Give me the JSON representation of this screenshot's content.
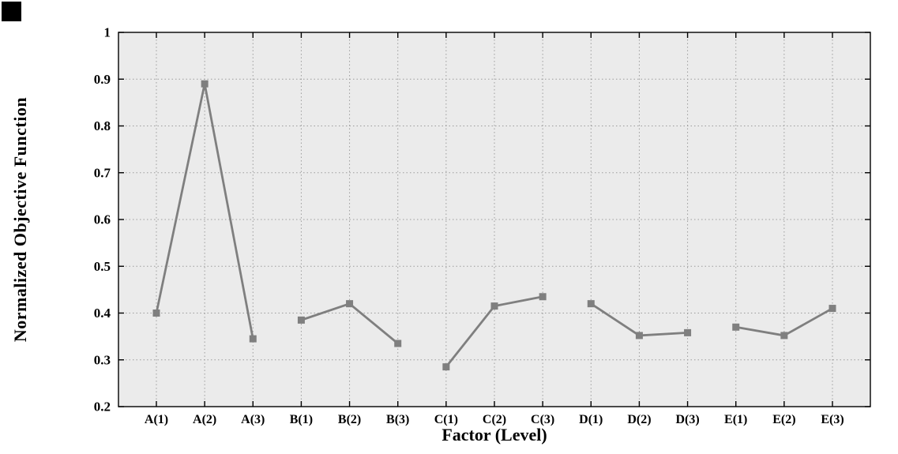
{
  "figure": {
    "background": "#ffffff",
    "plot_background": "#ebebeb",
    "axis_color": "#000000",
    "grid_color": "#9c9c9c",
    "corner_mark_color": "#000000"
  },
  "chart_data": {
    "type": "line",
    "title": "",
    "xlabel": "Factor (Level)",
    "ylabel": "Normalized Objective Function",
    "categories": [
      "A(1)",
      "A(2)",
      "A(3)",
      "B(1)",
      "B(2)",
      "B(3)",
      "C(1)",
      "C(2)",
      "C(3)",
      "D(1)",
      "D(2)",
      "D(3)",
      "E(1)",
      "E(2)",
      "E(3)"
    ],
    "ylim": [
      0.2,
      1
    ],
    "ytick_labels": [
      "0.2",
      "0.3",
      "0.4",
      "0.5",
      "0.6",
      "0.7",
      "0.8",
      "0.9",
      "1"
    ],
    "grid": "dotted",
    "legend": "none",
    "line_color": "#7f7f7f",
    "marker": "square",
    "marker_color": "#7f7f7f",
    "series": [
      {
        "name": "A",
        "start_index": 0,
        "values": [
          0.4,
          0.89,
          0.345
        ]
      },
      {
        "name": "B",
        "start_index": 3,
        "values": [
          0.385,
          0.42,
          0.335
        ]
      },
      {
        "name": "C",
        "start_index": 6,
        "values": [
          0.285,
          0.415,
          0.435
        ]
      },
      {
        "name": "D",
        "start_index": 9,
        "values": [
          0.42,
          0.352,
          0.358
        ]
      },
      {
        "name": "E",
        "start_index": 12,
        "values": [
          0.37,
          0.352,
          0.41
        ]
      }
    ]
  }
}
